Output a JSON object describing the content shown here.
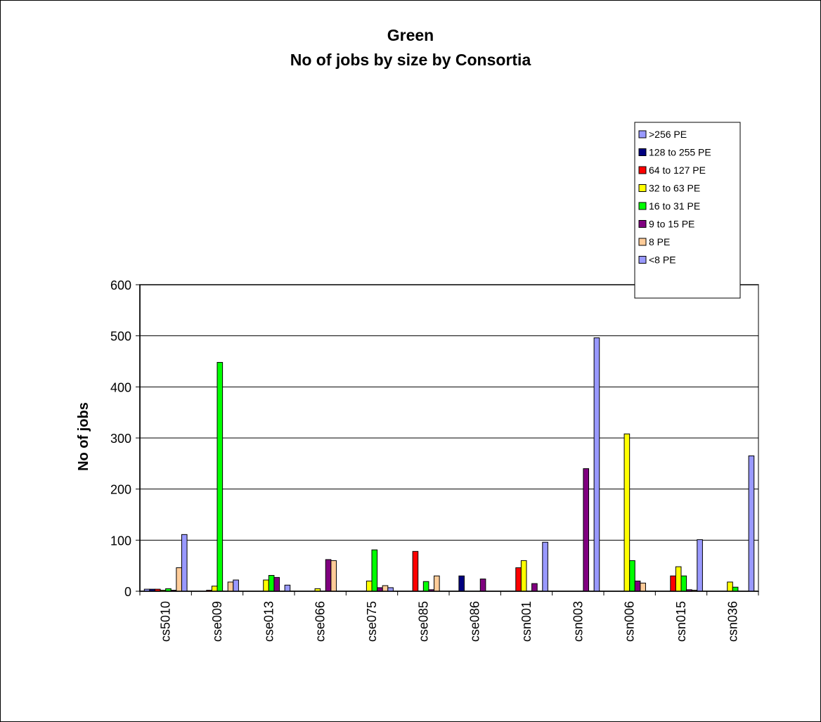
{
  "chart_data": {
    "type": "bar",
    "title": "Green",
    "subtitle": "No of jobs by size by Consortia",
    "ylabel": "No of jobs",
    "xlabel": "",
    "ylim": [
      0,
      600
    ],
    "yticks": [
      0,
      100,
      200,
      300,
      400,
      500,
      600
    ],
    "grid": true,
    "legend_position": "top-right",
    "categories": [
      "cs5010",
      "cse009",
      "cse013",
      "cse066",
      "cse075",
      "cse085",
      "cse086",
      "csn001",
      "csn003",
      "csn006",
      "csn015",
      "csn036"
    ],
    "series": [
      {
        "name": ">256 PE",
        "color": "#9999ff",
        "values": [
          4,
          0,
          0,
          0,
          0,
          0,
          0,
          0,
          0,
          0,
          0,
          0
        ]
      },
      {
        "name": "128 to 255 PE",
        "color": "#000080",
        "values": [
          4,
          0,
          0,
          0,
          0,
          0,
          30,
          0,
          0,
          0,
          0,
          0
        ]
      },
      {
        "name": "64 to 127 PE",
        "color": "#ff0000",
        "values": [
          4,
          2,
          0,
          0,
          0,
          78,
          0,
          46,
          0,
          0,
          30,
          0
        ]
      },
      {
        "name": "32 to 63 PE",
        "color": "#ffff00",
        "values": [
          2,
          10,
          22,
          5,
          20,
          0,
          0,
          60,
          0,
          308,
          48,
          18
        ]
      },
      {
        "name": "16 to 31 PE",
        "color": "#00ff00",
        "values": [
          5,
          448,
          31,
          0,
          81,
          19,
          0,
          0,
          0,
          60,
          30,
          8
        ]
      },
      {
        "name": "9 to 15 PE",
        "color": "#800080",
        "values": [
          2,
          0,
          27,
          62,
          7,
          3,
          24,
          15,
          240,
          20,
          3,
          0
        ]
      },
      {
        "name": "8 PE",
        "color": "#ffcc99",
        "values": [
          46,
          18,
          0,
          60,
          11,
          30,
          0,
          0,
          0,
          16,
          2,
          0
        ]
      },
      {
        "name": "<8 PE",
        "color": "#9999ff",
        "values": [
          111,
          22,
          12,
          0,
          7,
          0,
          0,
          96,
          496,
          0,
          101,
          265
        ]
      }
    ]
  }
}
